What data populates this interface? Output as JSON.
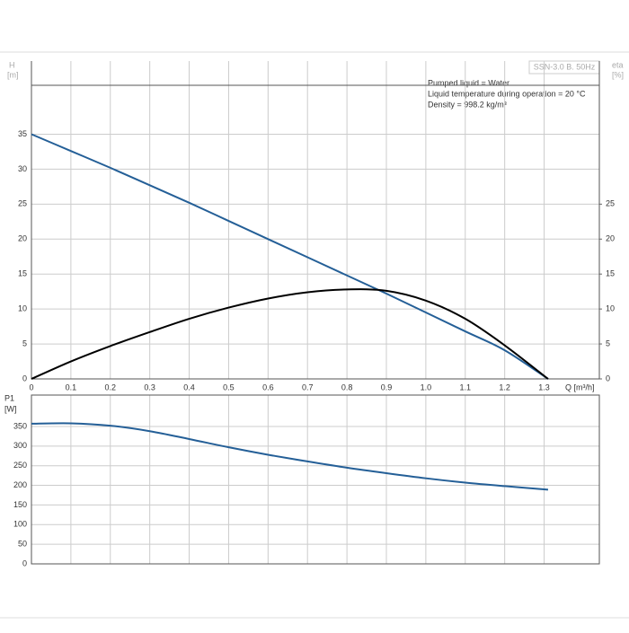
{
  "chart_data": [
    {
      "type": "line",
      "y_label": "H",
      "y_unit": "[m]",
      "y2_label": "eta",
      "y2_unit": "[%]",
      "x_label": "Q [m³/h]",
      "model": "SSN-3.0 B. 50Hz",
      "annotations": [
        "Pumped liquid = Water",
        "Liquid temperature during operation = 20 °C",
        "Density = 998.2 kg/m³"
      ],
      "x": [
        0,
        0.1,
        0.2,
        0.3,
        0.4,
        0.5,
        0.6,
        0.7,
        0.8,
        0.9,
        1.0,
        1.1,
        1.2,
        1.31
      ],
      "series": [
        {
          "name": "H",
          "color": "#245f97",
          "values": [
            35,
            32.6,
            30.2,
            27.7,
            25.2,
            22.6,
            20,
            17.4,
            14.8,
            12.2,
            9.5,
            6.8,
            4.1,
            0
          ]
        },
        {
          "name": "eta",
          "color": "#000000",
          "axis": "y2",
          "values": [
            0,
            2.5,
            4.7,
            6.7,
            8.6,
            10.2,
            11.5,
            12.4,
            12.8,
            12.6,
            11.2,
            8.6,
            4.8,
            0
          ]
        }
      ],
      "xlim": [
        0,
        1.44
      ],
      "xticks": [
        0,
        0.1,
        0.2,
        0.3,
        0.4,
        0.5,
        0.6,
        0.7,
        0.8,
        0.9,
        {
          "value": 1,
          "label": "1.0"
        },
        1.1,
        1.2,
        1.3
      ],
      "ylim": [
        0,
        42
      ],
      "yticks": [
        0,
        5,
        10,
        15,
        20,
        25,
        30,
        35
      ],
      "y2lim": [
        0,
        42
      ],
      "y2ticks": [
        0,
        5,
        10,
        15,
        20,
        25
      ],
      "grid": true
    },
    {
      "type": "line",
      "y_label": "P1",
      "y_unit": "[W]",
      "x": [
        0,
        0.1,
        0.2,
        0.3,
        0.4,
        0.5,
        0.6,
        0.7,
        0.8,
        0.9,
        1.0,
        1.1,
        1.2,
        1.31
      ],
      "series": [
        {
          "name": "P1",
          "color": "#245f97",
          "values": [
            357,
            358,
            352,
            338,
            318,
            297,
            278,
            261,
            245,
            231,
            218,
            207,
            198,
            189
          ]
        }
      ],
      "xlim": [
        0,
        1.44
      ],
      "ylim": [
        0,
        430
      ],
      "yticks": [
        0,
        50,
        100,
        150,
        200,
        250,
        300,
        350
      ],
      "grid": true
    }
  ]
}
